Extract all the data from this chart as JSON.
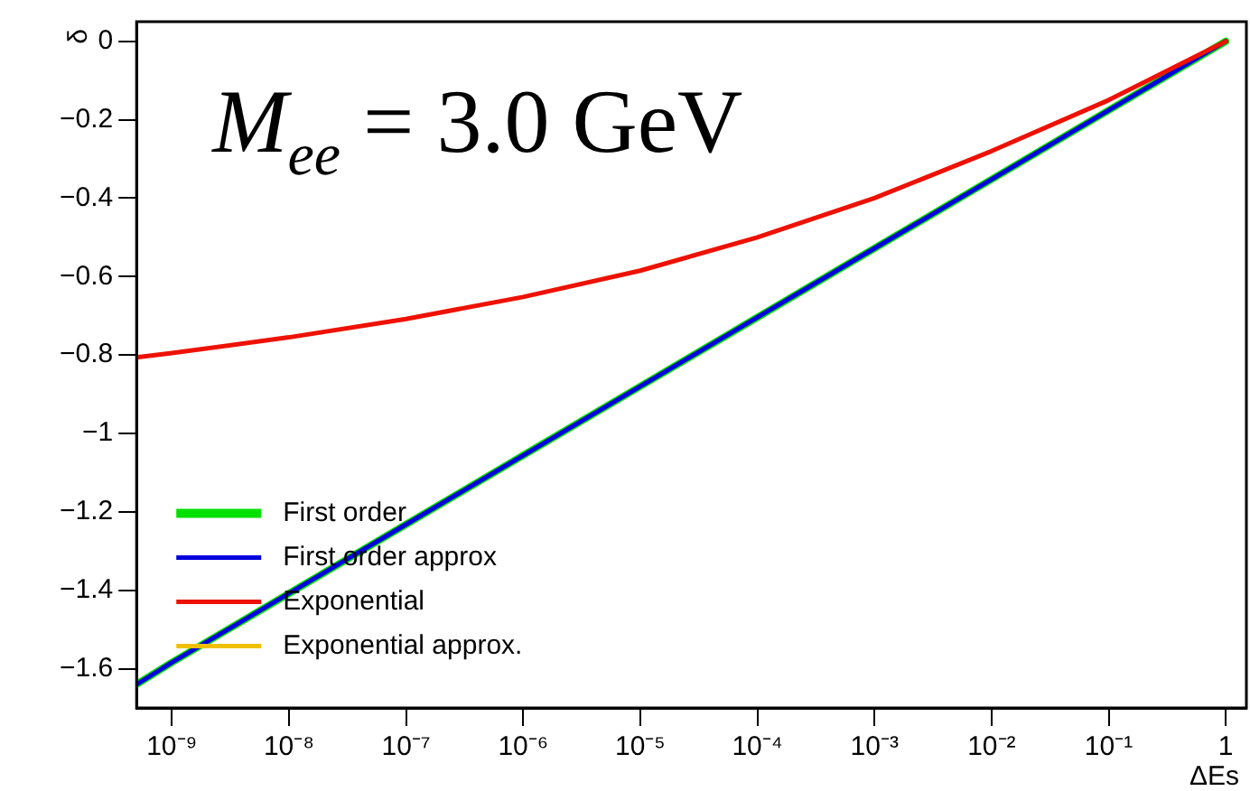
{
  "chart_data": {
    "type": "line",
    "xlabel": "ΔEs",
    "ylabel": "δ",
    "log": "x",
    "legend": "bottom left",
    "annotations": [
      "M$_{ee}$ = 3.0 GeV"
    ],
    "x": [
      5e-10,
      1e-09,
      1e-08,
      1e-07,
      1e-06,
      1e-05,
      0.0001,
      0.001,
      0.01,
      0.1,
      1
    ],
    "series": [
      {
        "name": "First order",
        "color": "#00e000",
        "values": [
          -1.64,
          -1.584,
          -1.408,
          -1.232,
          -1.056,
          -0.88,
          -0.704,
          -0.528,
          -0.352,
          -0.176,
          0
        ]
      },
      {
        "name": "First order approx",
        "color": "#0000dd",
        "values": [
          -1.64,
          -1.584,
          -1.408,
          -1.232,
          -1.056,
          -0.88,
          -0.704,
          -0.528,
          -0.352,
          -0.176,
          0
        ]
      },
      {
        "name": "Exponential",
        "color": "#ee1100",
        "values": [
          -0.806,
          -0.795,
          -0.755,
          -0.708,
          -0.652,
          -0.585,
          -0.5,
          -0.4,
          -0.28,
          -0.15,
          0
        ]
      },
      {
        "name": "Exponential approx.",
        "color": "#f0c000",
        "values": [
          null,
          null,
          null,
          null,
          null,
          null,
          null,
          null,
          null,
          null,
          null
        ]
      }
    ],
    "xlim": [
      5e-10,
      1.5
    ],
    "ylim": [
      -1.7,
      0.05
    ],
    "xticks": [
      {
        "value": 1e-09,
        "label": "10⁻⁹"
      },
      {
        "value": 1e-08,
        "label": "10⁻⁸"
      },
      {
        "value": 1e-07,
        "label": "10⁻⁷"
      },
      {
        "value": 1e-06,
        "label": "10⁻⁶"
      },
      {
        "value": 1e-05,
        "label": "10⁻⁵"
      },
      {
        "value": 0.0001,
        "label": "10⁻⁴"
      },
      {
        "value": 0.001,
        "label": "10⁻³"
      },
      {
        "value": 0.01,
        "label": "10⁻²"
      },
      {
        "value": 0.1,
        "label": "10⁻¹"
      },
      1
    ],
    "yticks": [
      0,
      -0.2,
      -0.4,
      -0.6,
      -0.8,
      -1,
      -1.2,
      -1.4,
      -1.6
    ],
    "grid": false,
    "marker": "none",
    "line_style": "solid"
  }
}
